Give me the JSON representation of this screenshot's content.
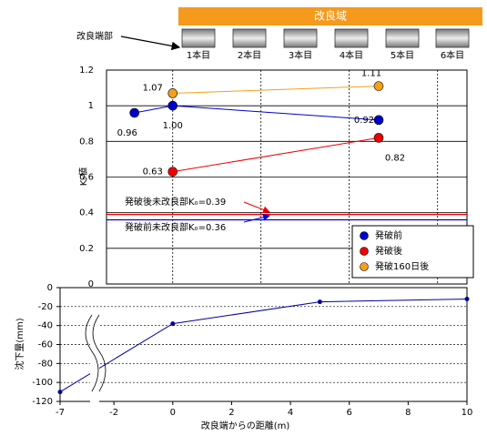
{
  "diagram": {
    "banner": "改良域",
    "edge_label": "改良端部",
    "piles": [
      "1本目",
      "2本目",
      "3本目",
      "4本目",
      "5本目",
      "6本目"
    ]
  },
  "chart_data": [
    {
      "type": "scatter-line",
      "y_label": "K₀値",
      "xlim": [
        -2.25,
        10
      ],
      "xgrid": [
        0,
        3,
        6,
        9
      ],
      "ylim": [
        0,
        1.2
      ],
      "yticks": [
        0,
        0.2,
        0.4,
        0.6,
        0.8,
        1,
        1.2
      ],
      "grid": true,
      "legend": "lower right",
      "series": [
        {
          "name": "発破前",
          "color": "#0000cc",
          "x": [
            -1.3,
            0,
            7
          ],
          "values": [
            0.96,
            1.0,
            0.92
          ],
          "value_labels": [
            "0.96",
            "1.00",
            "0.92"
          ]
        },
        {
          "name": "発破後",
          "color": "#ee0000",
          "x": [
            0,
            7
          ],
          "values": [
            0.63,
            0.82
          ]
        },
        {
          "name": "発破160日後",
          "color": "#f5a01a",
          "x": [
            0,
            7
          ],
          "values": [
            1.07,
            1.11
          ]
        }
      ],
      "reference_lines": [
        {
          "value": 0.39,
          "color": "#ee0000",
          "label": "発破後未改良部K₀=0.39"
        },
        {
          "value": 0.36,
          "color": "#0000ee",
          "label": "発破前未改良部K₀=0.36"
        }
      ]
    },
    {
      "type": "line",
      "x_label": "改良端からの距離(m)",
      "y_label": "沈下量(mm)",
      "xlim": [
        -7,
        10
      ],
      "x_break": [
        -3,
        -2.5
      ],
      "xticks": [
        -7,
        -2,
        0,
        2,
        4,
        6,
        8,
        10
      ],
      "ylim": [
        -120,
        0
      ],
      "yticks": [
        0,
        -20,
        -40,
        -60,
        -80,
        -100,
        -120
      ],
      "grid": true,
      "series": [
        {
          "color": "#000099",
          "x": [
            -7,
            0,
            5,
            10
          ],
          "values": [
            -110,
            -38,
            -15,
            -12
          ]
        }
      ]
    }
  ]
}
